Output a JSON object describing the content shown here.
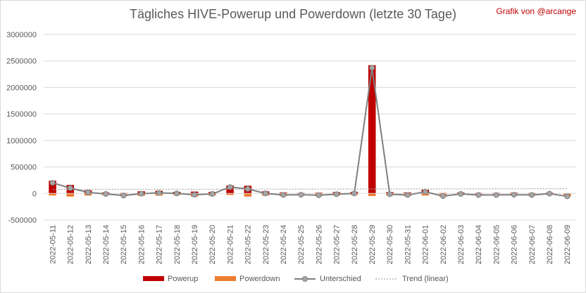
{
  "chart_data": {
    "type": "bar",
    "title": "Tägliches HIVE-Powerup und Powerdown (letzte 30 Tage)",
    "credit": "Grafik von @arcange",
    "xlabel": "",
    "ylabel": "",
    "ylim": [
      -500000,
      3000000
    ],
    "yticks": [
      -500000,
      0,
      500000,
      1000000,
      1500000,
      2000000,
      2500000,
      3000000
    ],
    "grid": true,
    "legend_position": "bottom",
    "categories": [
      "2022-05-11",
      "2022-05-12",
      "2022-05-13",
      "2022-05-14",
      "2022-05-15",
      "2022-05-16",
      "2022-05-17",
      "2022-05-18",
      "2022-05-19",
      "2022-05-20",
      "2022-05-21",
      "2022-05-22",
      "2022-05-23",
      "2022-05-24",
      "2022-05-25",
      "2022-05-26",
      "2022-05-27",
      "2022-05-28",
      "2022-05-29",
      "2022-05-30",
      "2022-05-31",
      "2022-06-01",
      "2022-06-02",
      "2022-06-03",
      "2022-06-04",
      "2022-06-05",
      "2022-06-06",
      "2022-06-07",
      "2022-06-08",
      "2022-06-09"
    ],
    "series": [
      {
        "name": "Powerup",
        "type": "stacked-bar",
        "color": "#c00000",
        "values": [
          240000,
          160000,
          60000,
          20000,
          10000,
          40000,
          50000,
          30000,
          35000,
          30000,
          150000,
          145000,
          40000,
          20000,
          10000,
          15000,
          25000,
          30000,
          2420000,
          25000,
          20000,
          70000,
          10000,
          20000,
          10000,
          10000,
          15000,
          10000,
          15000,
          5000
        ]
      },
      {
        "name": "Powerdown",
        "type": "stacked-bar",
        "color": "#ed7d31",
        "values": [
          -40000,
          -60000,
          -40000,
          -30000,
          -50000,
          -45000,
          -40000,
          -30000,
          -60000,
          -40000,
          -30000,
          -60000,
          -40000,
          -50000,
          -35000,
          -50000,
          -40000,
          -30000,
          -50000,
          -40000,
          -50000,
          -40000,
          -60000,
          -30000,
          -40000,
          -40000,
          -40000,
          -40000,
          -20000,
          -60000
        ]
      },
      {
        "name": "Unterschied",
        "type": "line",
        "color": "#7f7f7f",
        "values": [
          200000,
          100000,
          20000,
          -10000,
          -40000,
          -5000,
          10000,
          0,
          -25000,
          -10000,
          120000,
          85000,
          0,
          -30000,
          -25000,
          -35000,
          -15000,
          0,
          2370000,
          -15000,
          -30000,
          30000,
          -50000,
          -10000,
          -30000,
          -30000,
          -25000,
          -30000,
          -5000,
          -55000
        ]
      },
      {
        "name": "Trend (linear)",
        "type": "trendline",
        "color": "#a6a6a6"
      }
    ]
  }
}
